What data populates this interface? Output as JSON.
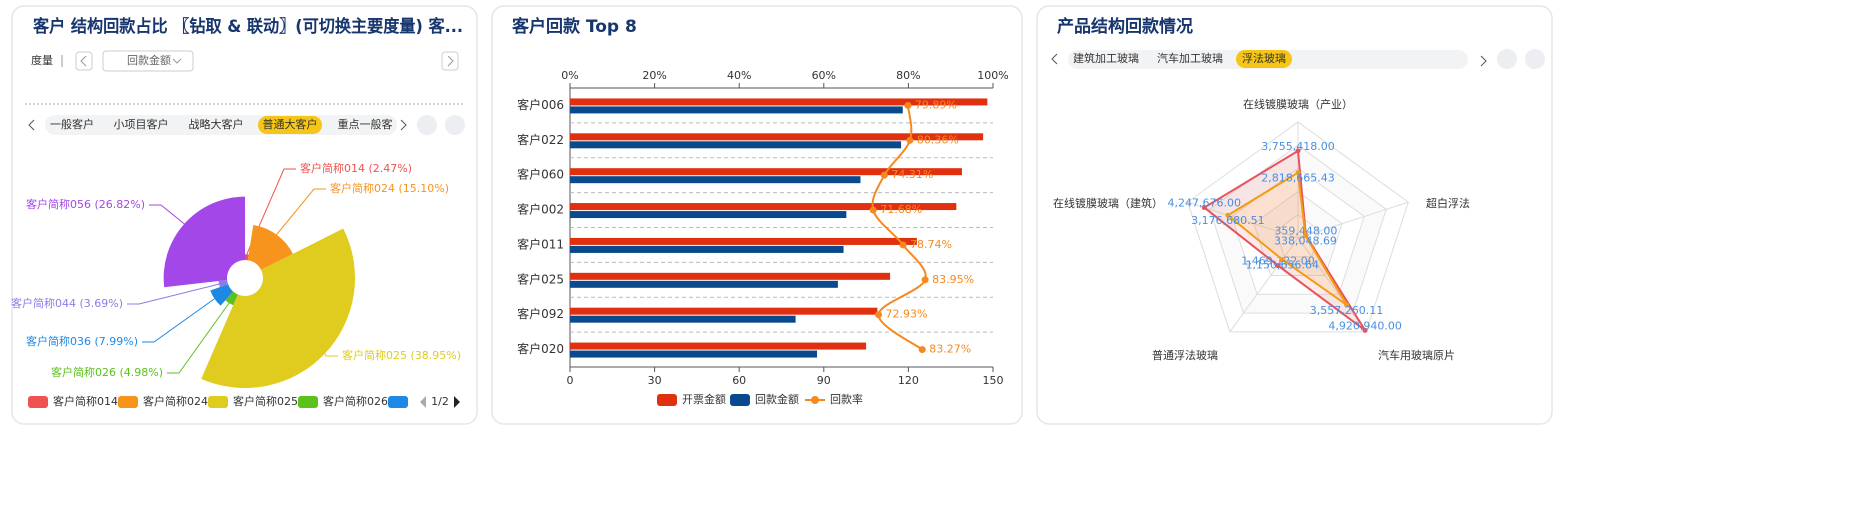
{
  "chart_data": [
    {
      "type": "pie",
      "rose": true,
      "title": "客户 结构回款占比 〖钻取 & 联动〗(可切换主要度量) 客...",
      "categories": [
        "客户简称014",
        "客户简称024",
        "客户简称025",
        "客户简称026",
        "客户简称036",
        "客户简称044",
        "客户简称056"
      ],
      "values": [
        2.47,
        15.1,
        38.95,
        4.98,
        7.99,
        3.69,
        26.82
      ],
      "value_labels": [
        "客户简称014 (2.47%)",
        "客户简称024 (15.10%)",
        "客户简称025 (38.95%)",
        "客户简称026 (4.98%)",
        "客户简称036 (7.99%)",
        "客户简称044 (3.69%)",
        "客户简称056 (26.82%)"
      ],
      "colors": [
        "#ef5350",
        "#f7941d",
        "#e0cc1e",
        "#5bc21c",
        "#1e88e5",
        "#8a7de8",
        "#a347e8"
      ],
      "legend_page": "1/2"
    },
    {
      "type": "bar",
      "orientation": "horizontal",
      "title": "客户回款 Top 8",
      "categories": [
        "客户006",
        "客户022",
        "客户060",
        "客户002",
        "客户011",
        "客户025",
        "客户092",
        "客户020"
      ],
      "series": [
        {
          "name": "开票金额",
          "color": "#e0300f",
          "values": [
            148,
            146.5,
            139,
            137,
            123,
            113.5,
            109,
            105
          ]
        },
        {
          "name": "回款金额",
          "color": "#0a4a8c",
          "values": [
            118,
            117.4,
            103,
            98,
            97,
            95,
            80,
            87.6
          ]
        },
        {
          "name": "回款率",
          "color": "#f5891f",
          "type": "line",
          "axis": "x2",
          "values": [
            79.89,
            80.36,
            74.31,
            71.68,
            78.74,
            83.95,
            72.93,
            83.27
          ],
          "value_labels": [
            "79.89%",
            "80.36%",
            "74.31%",
            "71.68%",
            "78.74%",
            "83.95%",
            "72.93%",
            "83.27%"
          ]
        }
      ],
      "xlim": [
        0,
        150
      ],
      "xticks": [
        0,
        30,
        60,
        90,
        120,
        150
      ],
      "x2lim": [
        0,
        100
      ],
      "x2ticks": [
        {
          "value": 0,
          "label": "0%"
        },
        {
          "value": 20,
          "label": "20%"
        },
        {
          "value": 40,
          "label": "40%"
        },
        {
          "value": 60,
          "label": "60%"
        },
        {
          "value": 80,
          "label": "80%"
        },
        {
          "value": 100,
          "label": "100%"
        }
      ]
    },
    {
      "type": "radar",
      "title": "产品结构回款情况",
      "indicators": [
        "在线镀膜玻璃（产业）",
        "超白浮法",
        "汽车用玻璃原片",
        "普通浮法玻璃",
        "在线镀膜玻璃（建筑）"
      ],
      "rlim": [
        0,
        5000000
      ],
      "series": [
        {
          "color": "#e8525a",
          "values": [
            3755418.0,
            359448.0,
            4920940.0,
            1469122.0,
            4247676.0
          ],
          "value_labels": [
            "3,755,418.00",
            "359,448.00",
            "4,920,940.00",
            "1,469,122.00",
            "4,247,676.00"
          ]
        },
        {
          "color": "#f39c12",
          "values": [
            2818665.43,
            338048.69,
            3557260.11,
            1150656.64,
            3176680.51
          ],
          "value_labels": [
            "2,818,665.43",
            "338,048.69",
            "3,557,260.11",
            "1,150,656.64",
            "3,176,680.51"
          ]
        }
      ]
    }
  ],
  "controls": {
    "measure_label": "度量",
    "measure_value": "回款金额",
    "customer_tabs": [
      "一般客户",
      "小项目客户",
      "战略大客户",
      "普通大客户",
      "重点一般客"
    ],
    "customer_tab_active": 3,
    "product_tabs": [
      "建筑加工玻璃",
      "汽车加工玻璃",
      "浮法玻璃"
    ],
    "product_tab_active": 2
  }
}
